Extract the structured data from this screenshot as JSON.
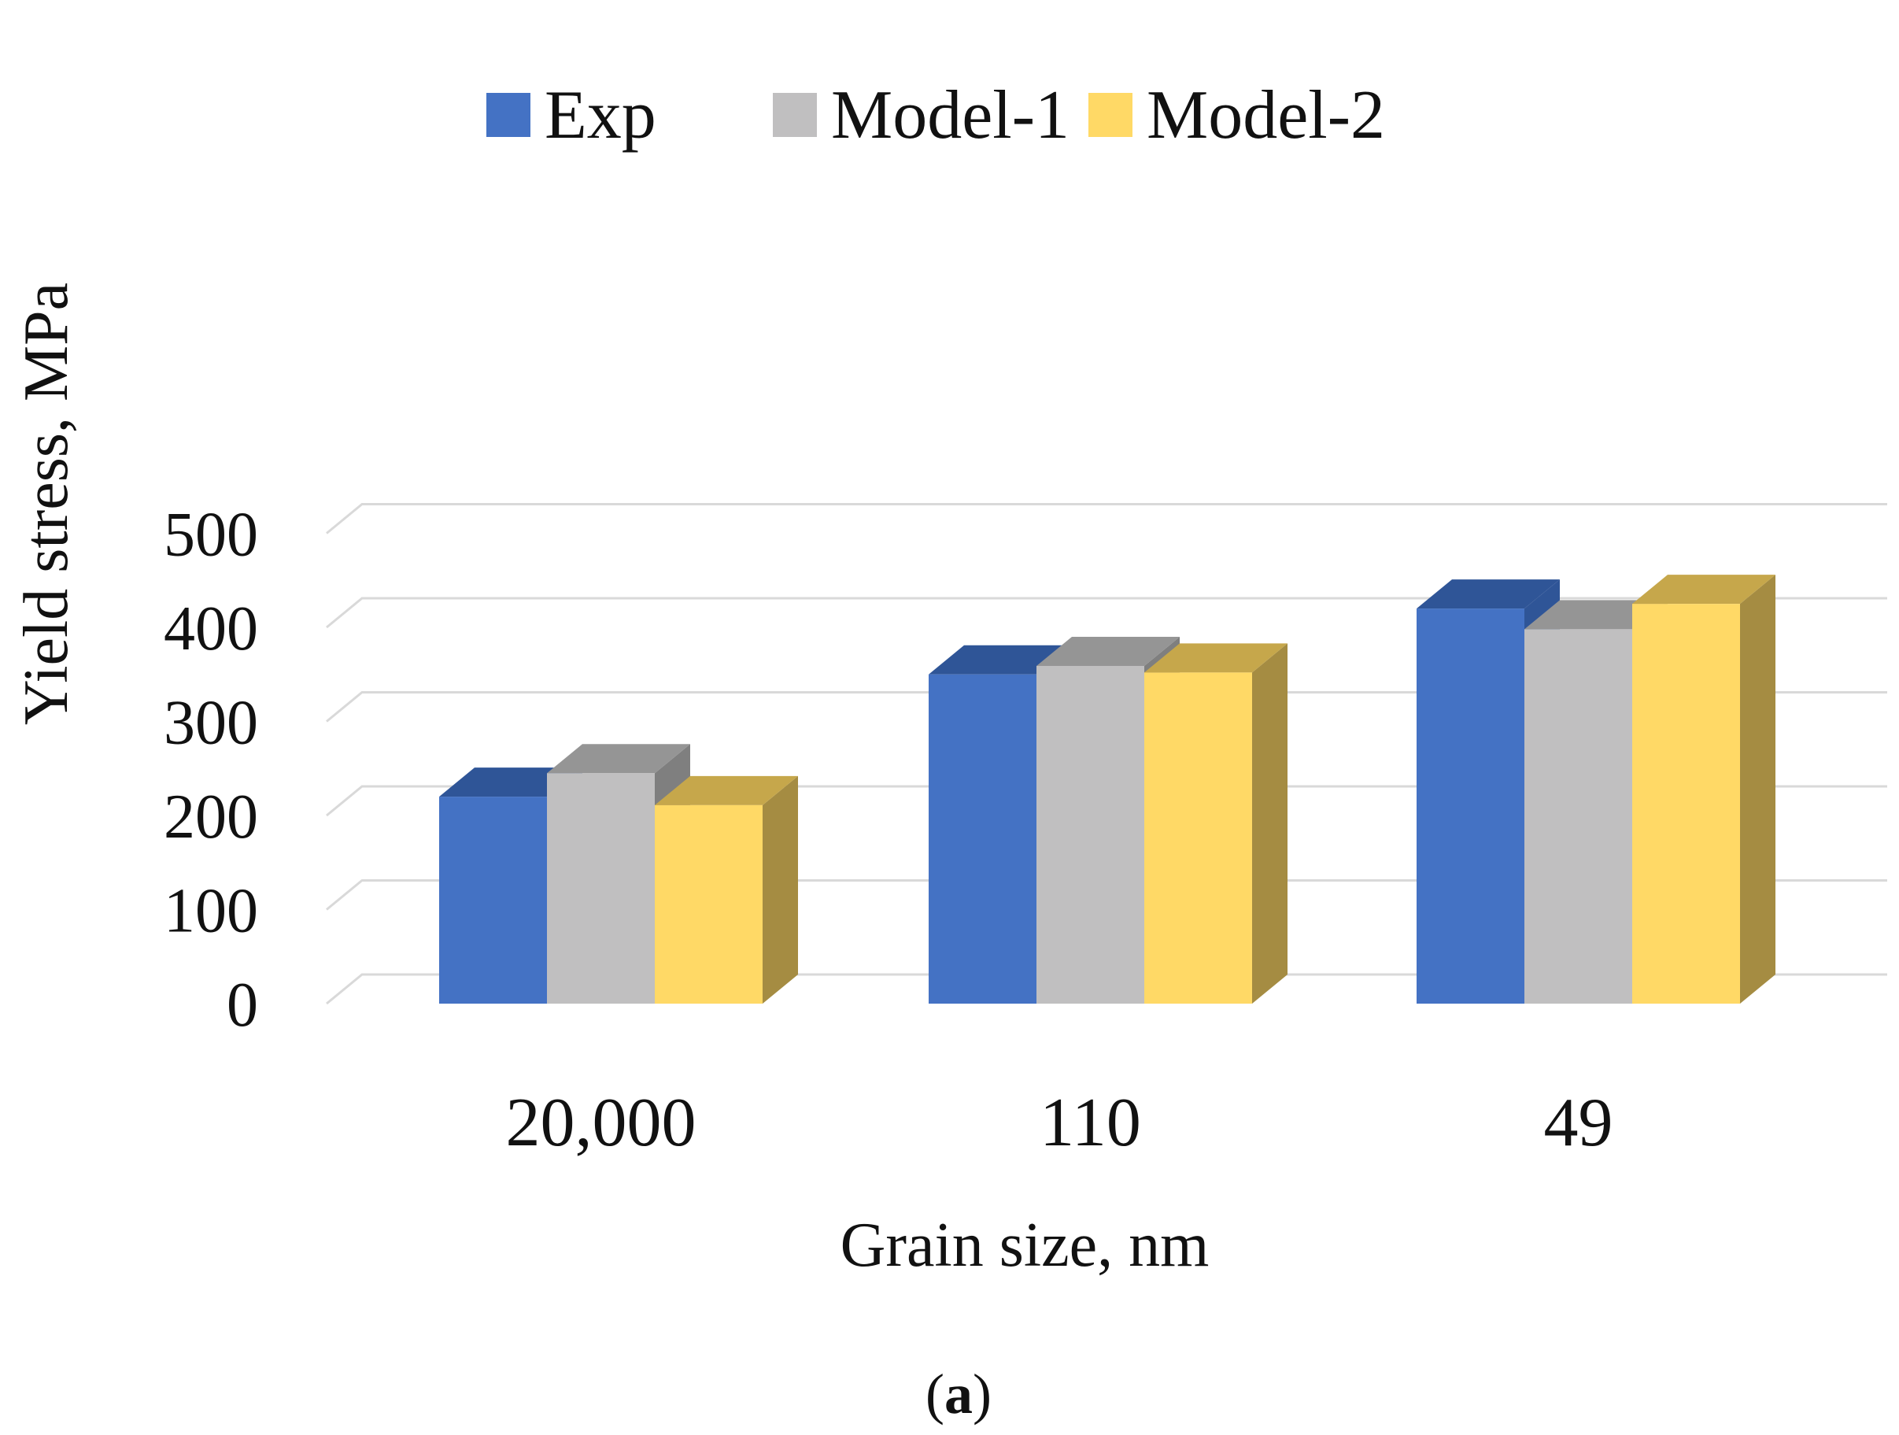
{
  "chart_data": {
    "type": "bar",
    "style": "3d-clustered",
    "categories": [
      "20,000",
      "110",
      "49"
    ],
    "series": [
      {
        "name": "Exp",
        "values": [
          220,
          350,
          420
        ],
        "color": "#4472C4",
        "top_color": "#2F5597",
        "side_color": "#2F5597"
      },
      {
        "name": "Model-1",
        "values": [
          245,
          359,
          398
        ],
        "color": "#C0BFC0",
        "top_color": "#959595",
        "side_color": "#7F7F7F"
      },
      {
        "name": "Model-2",
        "values": [
          211,
          352,
          425
        ],
        "color": "#FFD966",
        "top_color": "#C6A74B",
        "side_color": "#A58C42"
      }
    ],
    "xlabel": "Grain size, nm",
    "ylabel": "Yield stress, MPa",
    "ylim": [
      0,
      500
    ],
    "yticks": [
      0,
      100,
      200,
      300,
      400,
      500
    ],
    "yticks_labels": [
      "0",
      "100",
      "200",
      "300",
      "400",
      "500"
    ],
    "grid": true,
    "legend_position": "top",
    "caption_open": "(",
    "caption_letter": "a",
    "caption_close": ")"
  }
}
